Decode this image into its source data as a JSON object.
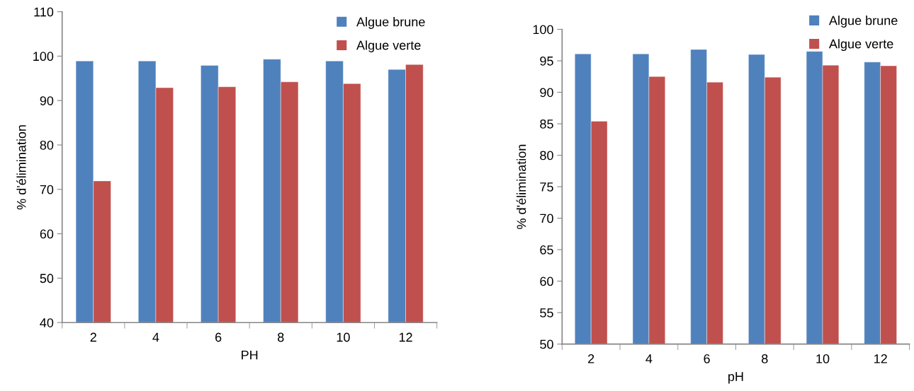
{
  "chart_data": [
    {
      "type": "bar",
      "xlabel": "PH",
      "ylabel": "% d'élimination",
      "categories": [
        "2",
        "4",
        "6",
        "8",
        "10",
        "12"
      ],
      "series": [
        {
          "name": "Algue brune",
          "color": "#4f81bd",
          "values": [
            98.9,
            98.9,
            97.9,
            99.3,
            98.9,
            97.0
          ]
        },
        {
          "name": "Algue verte",
          "color": "#c0504d",
          "values": [
            71.9,
            92.9,
            93.1,
            94.2,
            93.8,
            98.1
          ]
        }
      ],
      "ylim": [
        40,
        110
      ],
      "yticks": [
        40,
        50,
        60,
        70,
        80,
        90,
        100,
        110
      ],
      "grid": false,
      "legend": "top right"
    },
    {
      "type": "bar",
      "xlabel": "pH",
      "ylabel": "% d'élimination",
      "categories": [
        "2",
        "4",
        "6",
        "8",
        "10",
        "12"
      ],
      "series": [
        {
          "name": "Algue brune",
          "color": "#4f81bd",
          "values": [
            96.1,
            96.1,
            96.8,
            96.0,
            96.5,
            94.8
          ]
        },
        {
          "name": "Algue verte",
          "color": "#c0504d",
          "values": [
            85.4,
            92.5,
            91.6,
            92.4,
            94.3,
            94.2
          ]
        }
      ],
      "ylim": [
        50,
        100
      ],
      "yticks": [
        50,
        55,
        60,
        65,
        70,
        75,
        80,
        85,
        90,
        95,
        100
      ],
      "grid": false,
      "legend": "top right"
    }
  ]
}
